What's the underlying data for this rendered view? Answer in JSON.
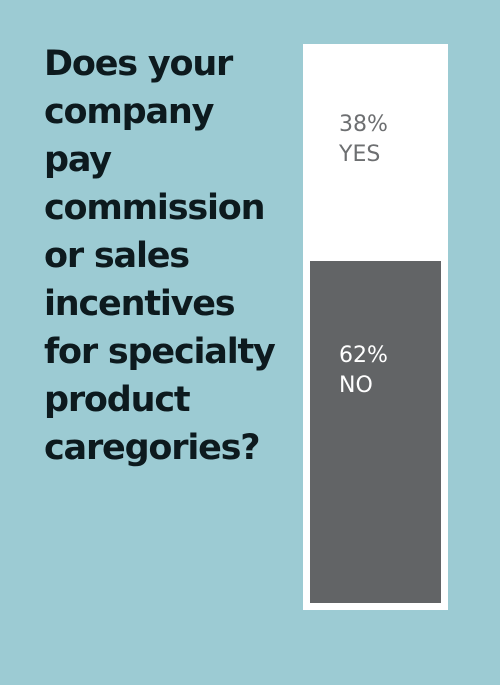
{
  "colors": {
    "background": "#9ccbd3",
    "frame": "#ffffff",
    "no_fill": "#626466",
    "yes_text": "#6d6f71",
    "no_text": "#ffffff",
    "question_text": "#0d1a1e"
  },
  "question": "Does your\ncompany pay\ncommission\nor sales\nincentives\nfor specialty\nproduct\ncaregories?",
  "chart_data": {
    "type": "bar",
    "orientation": "stacked-vertical",
    "title": "Does your company pay commission or sales incentives for specialty product caregories?",
    "categories": [
      "YES",
      "NO"
    ],
    "values": [
      38,
      62
    ],
    "unit": "%",
    "labels": [
      {
        "pct": "38%",
        "name": "YES"
      },
      {
        "pct": "62%",
        "name": "NO"
      }
    ]
  }
}
